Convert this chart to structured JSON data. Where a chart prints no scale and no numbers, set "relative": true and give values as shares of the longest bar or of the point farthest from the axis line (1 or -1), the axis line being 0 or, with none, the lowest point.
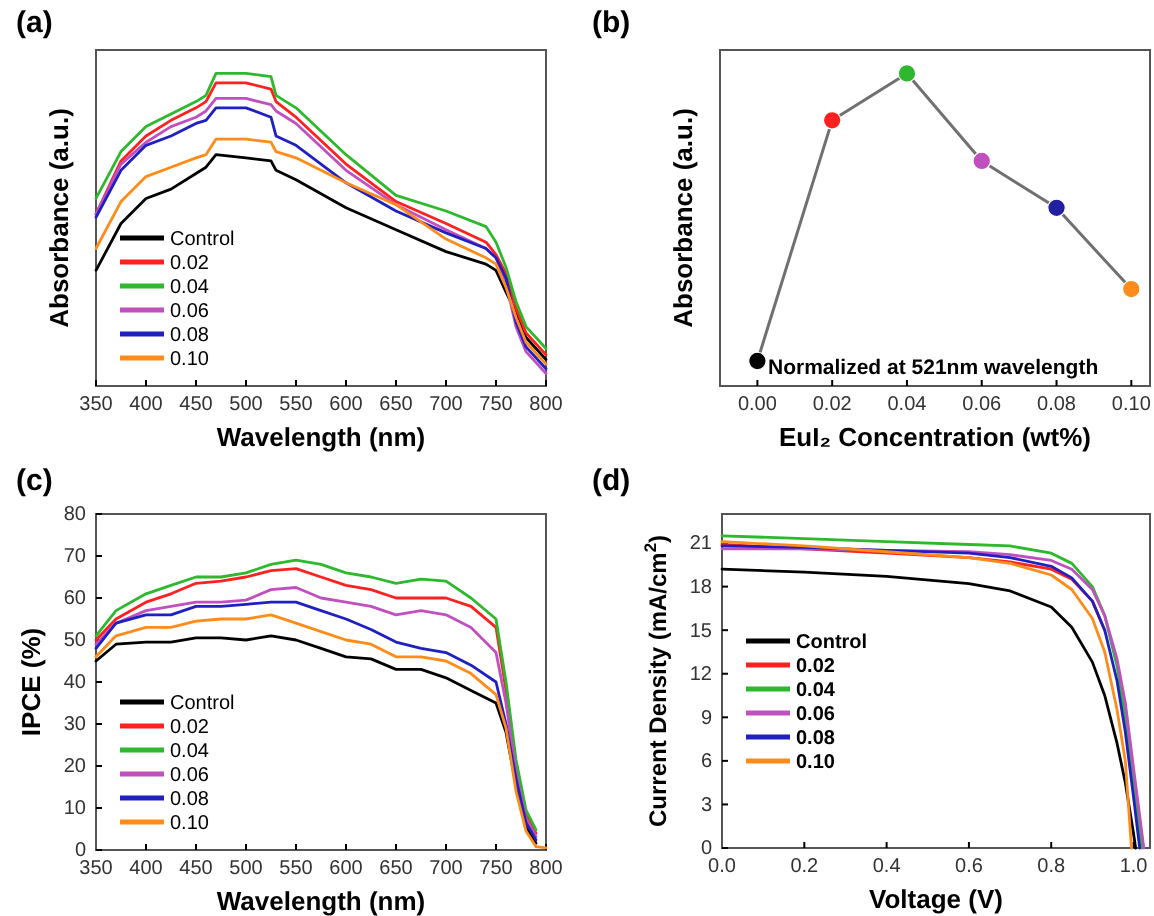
{
  "chart_data": [
    {
      "type": "line",
      "title": "(a)",
      "xlabel": "Wavelength (nm)",
      "ylabel": "Absorbance (a.u.)",
      "relative": true,
      "xlim": [
        350,
        800
      ],
      "xticks": [
        350,
        400,
        450,
        500,
        550,
        600,
        650,
        700,
        750,
        800
      ],
      "legend": "bottom left",
      "marker": "none",
      "x": [
        350,
        375,
        400,
        425,
        450,
        460,
        470,
        500,
        525,
        530,
        550,
        600,
        650,
        700,
        740,
        750,
        760,
        770,
        780,
        800
      ],
      "series": [
        {
          "name": "Control",
          "color": "#000000",
          "values": [
            0.37,
            0.52,
            0.6,
            0.63,
            0.68,
            0.7,
            0.74,
            0.73,
            0.72,
            0.69,
            0.66,
            0.57,
            0.5,
            0.43,
            0.39,
            0.37,
            0.3,
            0.235,
            0.155,
            0.085
          ]
        },
        {
          "name": "0.02",
          "color": "#ff2020",
          "values": [
            0.55,
            0.72,
            0.8,
            0.85,
            0.89,
            0.91,
            0.97,
            0.97,
            0.95,
            0.91,
            0.86,
            0.71,
            0.59,
            0.52,
            0.46,
            0.42,
            0.36,
            0.25,
            0.17,
            0.1
          ]
        },
        {
          "name": "0.04",
          "color": "#2db82d",
          "values": [
            0.6,
            0.75,
            0.83,
            0.87,
            0.91,
            0.93,
            1.0,
            1.0,
            0.99,
            0.93,
            0.89,
            0.74,
            0.61,
            0.56,
            0.51,
            0.46,
            0.38,
            0.27,
            0.19,
            0.12
          ]
        },
        {
          "name": "0.06",
          "color": "#c050c0",
          "values": [
            0.55,
            0.71,
            0.78,
            0.83,
            0.86,
            0.88,
            0.92,
            0.92,
            0.9,
            0.88,
            0.84,
            0.69,
            0.58,
            0.5,
            0.44,
            0.41,
            0.33,
            0.19,
            0.11,
            0.04
          ]
        },
        {
          "name": "0.08",
          "color": "#2020c0",
          "values": [
            0.54,
            0.69,
            0.77,
            0.8,
            0.84,
            0.85,
            0.89,
            0.89,
            0.86,
            0.8,
            0.77,
            0.65,
            0.56,
            0.49,
            0.44,
            0.41,
            0.345,
            0.205,
            0.125,
            0.055
          ]
        },
        {
          "name": "0.10",
          "color": "#ff8c1a",
          "values": [
            0.44,
            0.59,
            0.67,
            0.7,
            0.73,
            0.74,
            0.79,
            0.79,
            0.78,
            0.75,
            0.73,
            0.65,
            0.58,
            0.47,
            0.41,
            0.39,
            0.315,
            0.22,
            0.14,
            0.07
          ]
        }
      ]
    },
    {
      "type": "line",
      "title": "(b)",
      "xlabel": "EuI₂ Concentration (wt%)",
      "ylabel": "Absorbance (a.u.)",
      "relative": true,
      "xlim": [
        -0.01,
        0.105
      ],
      "xticks": [
        {
          "value": 0,
          "label": "0.00"
        },
        {
          "value": 0.02,
          "label": "0.02"
        },
        {
          "value": 0.04,
          "label": "0.04"
        },
        {
          "value": 0.06,
          "label": "0.06"
        },
        {
          "value": 0.08,
          "label": "0.08"
        },
        {
          "value": 0.1,
          "label": "0.10"
        }
      ],
      "marker": "circle",
      "x": [
        0,
        0.02,
        0.04,
        0.06,
        0.08,
        0.1
      ],
      "annotations": [
        "Normalized at 521nm wavelength"
      ],
      "series": [
        {
          "color": "#707070",
          "colors": [
            "#000000",
            "#ff2020",
            "#2db82d",
            "#c050c0",
            "#2020a0",
            "#ff8c1a"
          ],
          "values": [
            0.08,
            0.85,
            1.0,
            0.72,
            0.57,
            0.31
          ]
        }
      ]
    },
    {
      "type": "line",
      "title": "(c)",
      "xlabel": "Wavelength (nm)",
      "ylabel": "IPCE (%)",
      "xlim": [
        350,
        800
      ],
      "xticks": [
        350,
        400,
        450,
        500,
        550,
        600,
        650,
        700,
        750,
        800
      ],
      "ylim": [
        0,
        80
      ],
      "yticks": [
        0,
        10,
        20,
        30,
        40,
        50,
        60,
        70,
        80
      ],
      "legend": "bottom left",
      "marker": "none",
      "x": [
        350,
        370,
        400,
        425,
        450,
        475,
        500,
        525,
        550,
        575,
        600,
        625,
        650,
        675,
        700,
        725,
        750,
        760,
        770,
        780,
        790,
        800
      ],
      "series": [
        {
          "name": "Control",
          "color": "#000000",
          "values": [
            45,
            49,
            49.5,
            49.5,
            50.5,
            50.5,
            50,
            51,
            50,
            48,
            46,
            45.5,
            43,
            43,
            41,
            38,
            35,
            28,
            15.5,
            5.5,
            1.6,
            null
          ]
        },
        {
          "name": "0.02",
          "color": "#ff2020",
          "values": [
            50,
            55,
            59,
            61,
            63.5,
            64,
            65,
            66.5,
            67,
            65,
            63,
            62,
            60,
            60,
            60,
            58,
            53,
            38,
            20,
            8.5,
            4.0,
            null
          ]
        },
        {
          "name": "0.04",
          "color": "#2db82d",
          "values": [
            51,
            57,
            61,
            63,
            65,
            65,
            66,
            68,
            69,
            68,
            66,
            65,
            63.5,
            64.5,
            64,
            60,
            55,
            40,
            21.5,
            9.5,
            4.8,
            null
          ]
        },
        {
          "name": "0.06",
          "color": "#c050c0",
          "values": [
            49,
            54,
            57,
            58,
            59,
            59,
            59.5,
            62,
            62.5,
            60,
            59,
            58,
            56,
            57,
            56,
            53,
            47,
            35,
            18.5,
            7.5,
            3.2,
            null
          ]
        },
        {
          "name": "0.08",
          "color": "#2020c0",
          "values": [
            48,
            54,
            56,
            56,
            58,
            58,
            58.5,
            59,
            59,
            57,
            55,
            52.5,
            49.5,
            48,
            47,
            44,
            40,
            30,
            17,
            6.5,
            2.4,
            null
          ]
        },
        {
          "name": "0.10",
          "color": "#ff8c1a",
          "values": [
            46,
            51,
            53,
            53,
            54.5,
            55,
            55,
            56,
            54,
            52,
            50,
            49,
            46,
            46,
            45,
            42,
            37,
            29,
            14,
            4.5,
            0.8,
            0.5
          ]
        }
      ]
    },
    {
      "type": "line",
      "title": "(d)",
      "xlabel": "Voltage (V)",
      "ylabel": "Current Density (mA/cm$^{2}$)",
      "xlim": [
        0,
        1.04
      ],
      "xticks": [
        {
          "value": 0,
          "label": "0.0"
        },
        {
          "value": 0.2,
          "label": "0.2"
        },
        {
          "value": 0.4,
          "label": "0.4"
        },
        {
          "value": 0.6,
          "label": "0.6"
        },
        {
          "value": 0.8,
          "label": "0.8"
        },
        {
          "value": 1,
          "label": "1.0"
        }
      ],
      "ylim": [
        0,
        23
      ],
      "yticks": [
        0,
        3,
        6,
        9,
        12,
        15,
        18,
        21
      ],
      "legend": "left",
      "marker": "none",
      "series": [
        {
          "name": "Control",
          "color": "#000000",
          "x": [
            0,
            0.2,
            0.4,
            0.6,
            0.7,
            0.8,
            0.85,
            0.9,
            0.93,
            0.96,
            0.98,
            1.0,
            1.005
          ],
          "values": [
            19.2,
            19.0,
            18.7,
            18.2,
            17.7,
            16.6,
            15.2,
            12.8,
            10.5,
            7.2,
            4.5,
            1.0,
            0
          ]
        },
        {
          "name": "0.02",
          "color": "#ff2020",
          "x": [
            0,
            0.2,
            0.4,
            0.6,
            0.7,
            0.8,
            0.85,
            0.9,
            0.93
          ],
          "values": [
            20.9,
            20.6,
            20.3,
            20.0,
            19.7,
            19.2,
            18.5,
            17,
            15
          ]
        },
        {
          "name": "0.04",
          "color": "#2db82d",
          "x": [
            0,
            0.2,
            0.4,
            0.6,
            0.7,
            0.8,
            0.85,
            0.9,
            0.93,
            0.96,
            0.98,
            1.0,
            1.02
          ],
          "values": [
            21.5,
            21.3,
            21.1,
            20.9,
            20.8,
            20.3,
            19.6,
            18,
            16,
            12.5,
            9,
            4.5,
            0
          ]
        },
        {
          "name": "0.06",
          "color": "#c050c0",
          "x": [
            0,
            0.2,
            0.4,
            0.6,
            0.7,
            0.8,
            0.85,
            0.9,
            0.93,
            0.96,
            0.98,
            1.0,
            1.025
          ],
          "values": [
            20.6,
            20.6,
            20.5,
            20.4,
            20.2,
            19.8,
            19.2,
            17.8,
            16,
            13,
            10,
            5.5,
            0
          ]
        },
        {
          "name": "0.08",
          "color": "#2020c0",
          "x": [
            0,
            0.2,
            0.4,
            0.6,
            0.7,
            0.8,
            0.85,
            0.9,
            0.93,
            0.96,
            0.98,
            1.0,
            1.015
          ],
          "values": [
            20.8,
            20.7,
            20.5,
            20.3,
            20.0,
            19.4,
            18.6,
            17,
            15,
            11.5,
            8,
            3.5,
            0
          ]
        },
        {
          "name": "0.10",
          "color": "#ff8c1a",
          "x": [
            0,
            0.2,
            0.4,
            0.6,
            0.7,
            0.8,
            0.85,
            0.9,
            0.93,
            0.96,
            0.98,
            0.995
          ],
          "values": [
            21.1,
            20.8,
            20.4,
            20.0,
            19.6,
            18.8,
            17.8,
            15.8,
            13.5,
            9.5,
            6,
            0
          ]
        }
      ]
    }
  ]
}
